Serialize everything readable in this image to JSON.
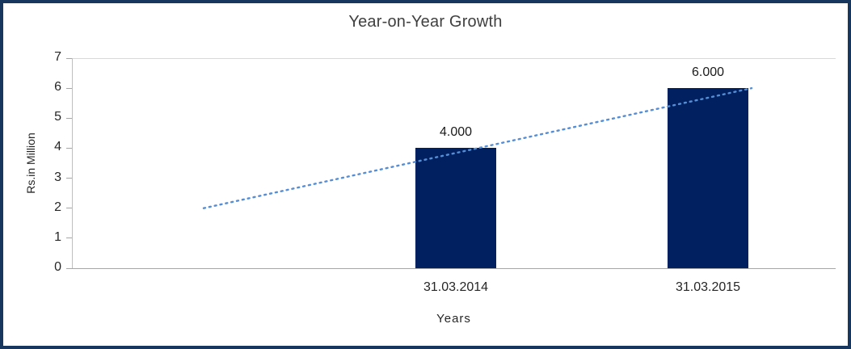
{
  "frame": {
    "border_color": "#17375E",
    "background": "#FFFFFF"
  },
  "chart_data": {
    "type": "bar",
    "title": "Year-on-Year Growth",
    "categories": [
      "31.03.2014",
      "31.03.2015"
    ],
    "values": [
      4,
      6
    ],
    "data_labels": [
      "4.000",
      "6.000"
    ],
    "xlabel": "Years",
    "ylabel": "Rs.in Million",
    "ylim": [
      0,
      7
    ],
    "yticks": [
      0,
      1,
      2,
      3,
      4,
      5,
      6,
      7
    ],
    "bar_color": "#002060",
    "grid": false,
    "legend": "none",
    "trendline": {
      "type": "linear",
      "style": "dotted",
      "color": "#558ED5",
      "start_value": 2,
      "end_value": 6
    }
  }
}
